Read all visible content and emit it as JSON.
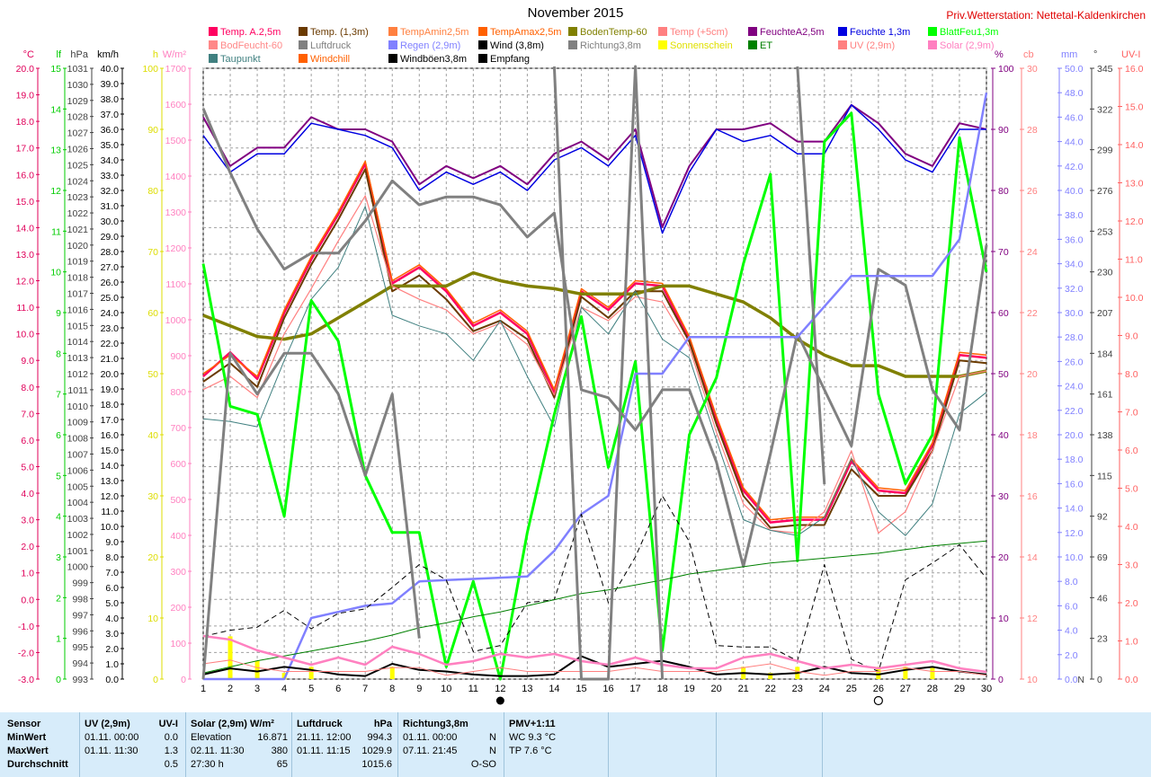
{
  "title": "November 2015",
  "station": "Priv.Wetterstation: Nettetal-Kaldenkirchen",
  "legend": [
    {
      "label": "Temp. A.2,5m",
      "color": "#ff0060"
    },
    {
      "label": "Temp. (1,3m)",
      "color": "#6a3a00"
    },
    {
      "label": "TempAmin2,5m",
      "color": "#ff8040"
    },
    {
      "label": "TempAmax2,5m",
      "color": "#ff6000"
    },
    {
      "label": "BodenTemp-60",
      "color": "#808000"
    },
    {
      "label": "Temp (+5cm)",
      "color": "#ff8080"
    },
    {
      "label": "FeuchteA2,5m",
      "color": "#800080"
    },
    {
      "label": "Feuchte 1,3m",
      "color": "#0000e0"
    },
    {
      "label": "BlattFeu1,3m",
      "color": "#00ff00"
    },
    {
      "label": "BodFeucht-60",
      "color": "#ff8888"
    },
    {
      "label": "Luftdruck",
      "color": "#808080"
    },
    {
      "label": "Regen (2,9m)",
      "color": "#8080ff"
    },
    {
      "label": "Wind (3,8m)",
      "color": "#000000"
    },
    {
      "label": "Richtung3,8m",
      "color": "#808080"
    },
    {
      "label": "Sonnenschein",
      "color": "#ffff00"
    },
    {
      "label": "ET",
      "color": "#008000"
    },
    {
      "label": "UV (2,9m)",
      "color": "#ff8080"
    },
    {
      "label": "Solar (2,9m)",
      "color": "#ff80c0"
    },
    {
      "label": "Taupunkt",
      "color": "#408080"
    },
    {
      "label": "Windchill",
      "color": "#ff6000"
    },
    {
      "label": "Windböen3,8m",
      "color": "#000000"
    },
    {
      "label": "Empfang",
      "color": "#000000"
    }
  ],
  "axes_left": [
    {
      "unit": "°C",
      "color": "#e0005a",
      "ticks": [
        "20.0",
        "19.0",
        "18.0",
        "17.0",
        "16.0",
        "15.0",
        "14.0",
        "13.0",
        "12.0",
        "11.0",
        "10.0",
        "9.0",
        "8.0",
        "7.0",
        "6.0",
        "5.0",
        "4.0",
        "3.0",
        "2.0",
        "1.0",
        "0.0",
        "-1.0",
        "-2.0",
        "-3.0"
      ]
    },
    {
      "unit": "lf",
      "color": "#00cc00",
      "ticks": [
        "15",
        "14",
        "13",
        "12",
        "11",
        "10",
        "9",
        "8",
        "7",
        "6",
        "5",
        "4",
        "3",
        "2",
        "1",
        "0"
      ]
    },
    {
      "unit": "hPa",
      "color": "#404040",
      "ticks": [
        "1031",
        "1030",
        "1029",
        "1028",
        "1027",
        "1026",
        "1025",
        "1024",
        "1023",
        "1022",
        "1021",
        "1020",
        "1019",
        "1018",
        "1017",
        "1016",
        "1015",
        "1014",
        "1013",
        "1012",
        "1011",
        "1010",
        "1009",
        "1008",
        "1007",
        "1006",
        "1005",
        "1004",
        "1003",
        "1002",
        "1001",
        "1000",
        "999",
        "998",
        "997",
        "996",
        "995",
        "994",
        "993"
      ]
    },
    {
      "unit": "km/h",
      "color": "#000000",
      "ticks": [
        "40.0",
        "39.0",
        "38.0",
        "37.0",
        "36.0",
        "35.0",
        "34.0",
        "33.0",
        "32.0",
        "31.0",
        "30.0",
        "29.0",
        "28.0",
        "27.0",
        "26.0",
        "25.0",
        "24.0",
        "23.0",
        "22.0",
        "21.0",
        "20.0",
        "19.0",
        "18.0",
        "17.0",
        "16.0",
        "15.0",
        "14.0",
        "13.0",
        "12.0",
        "11.0",
        "10.0",
        "9.0",
        "8.0",
        "7.0",
        "6.0",
        "5.0",
        "4.0",
        "3.0",
        "2.0",
        "1.0",
        "0.0"
      ]
    },
    {
      "unit": "h",
      "color": "#dddd00",
      "ticks": [
        "100",
        "90",
        "80",
        "70",
        "60",
        "50",
        "40",
        "30",
        "20",
        "10",
        "0"
      ]
    },
    {
      "unit": "W/m²",
      "color": "#ff80c0",
      "ticks": [
        "1700",
        "1600",
        "1500",
        "1400",
        "1300",
        "1200",
        "1100",
        "1000",
        "900",
        "800",
        "700",
        "600",
        "500",
        "400",
        "300",
        "200",
        "100",
        "0"
      ]
    }
  ],
  "axes_right": [
    {
      "unit": "%",
      "color": "#800080",
      "ticks": [
        "100",
        "90",
        "80",
        "70",
        "60",
        "50",
        "40",
        "30",
        "20",
        "10",
        "0"
      ]
    },
    {
      "unit": "cb",
      "color": "#ff8080",
      "ticks": [
        "30",
        "28",
        "26",
        "24",
        "22",
        "20",
        "18",
        "16",
        "14",
        "12",
        "10"
      ]
    },
    {
      "unit": "mm",
      "color": "#8080ff",
      "ticks": [
        "50.0",
        "48.0",
        "46.0",
        "44.0",
        "42.0",
        "40.0",
        "38.0",
        "36.0",
        "34.0",
        "32.0",
        "30.0",
        "28.0",
        "26.0",
        "24.0",
        "22.0",
        "20.0",
        "18.0",
        "16.0",
        "14.0",
        "12.0",
        "10.0",
        "8.0",
        "6.0",
        "4.0",
        "2.0",
        "0.0"
      ]
    },
    {
      "unit": "°",
      "color": "#404040",
      "ticks": [
        "345",
        "322",
        "299",
        "276",
        "253",
        "230",
        "207",
        "184",
        "161",
        "138",
        "115",
        "92",
        "69",
        "46",
        "23",
        "0"
      ],
      "bottom_label": "N"
    },
    {
      "unit": "UV-I",
      "color": "#ff6060",
      "ticks": [
        "16.0",
        "15.0",
        "14.0",
        "13.0",
        "12.0",
        "11.0",
        "10.0",
        "9.0",
        "8.0",
        "7.0",
        "6.0",
        "5.0",
        "4.0",
        "3.0",
        "2.0",
        "1.0",
        "0.0"
      ]
    }
  ],
  "moon_phase_symbols": [
    {
      "day": 12,
      "phase": "new moon"
    },
    {
      "day": 26,
      "phase": "full moon"
    }
  ],
  "chart_data": {
    "type": "line",
    "x": [
      1,
      2,
      3,
      4,
      5,
      6,
      7,
      8,
      9,
      10,
      11,
      12,
      13,
      14,
      15,
      16,
      17,
      18,
      19,
      20,
      21,
      22,
      23,
      24,
      25,
      26,
      27,
      28,
      29,
      30
    ],
    "xlim": [
      1,
      30
    ],
    "series": [
      {
        "name": "Temp. A.2,5m",
        "axis": "°C",
        "color": "#ff0060",
        "width": 2.5,
        "values": [
          8.4,
          9.3,
          8.3,
          10.8,
          12.8,
          14.5,
          16.4,
          11.9,
          12.5,
          11.6,
          10.3,
          10.8,
          10.0,
          7.8,
          11.6,
          10.9,
          11.9,
          11.8,
          9.8,
          6.8,
          4.1,
          2.9,
          3.0,
          3.0,
          5.2,
          4.1,
          4.0,
          5.8,
          9.2,
          9.1
        ]
      },
      {
        "name": "Temp. (1,3m)",
        "axis": "°C",
        "color": "#6a3a00",
        "width": 2,
        "values": [
          8.2,
          8.9,
          8.0,
          10.6,
          12.6,
          14.3,
          16.2,
          11.6,
          12.2,
          11.3,
          10.1,
          10.5,
          9.8,
          7.6,
          11.4,
          10.6,
          11.6,
          11.6,
          9.7,
          6.6,
          3.9,
          2.7,
          2.8,
          2.8,
          4.9,
          3.9,
          3.9,
          5.6,
          9.0,
          8.9
        ]
      },
      {
        "name": "TempAmax2,5m",
        "axis": "°C",
        "color": "#ff6000",
        "width": 1.5,
        "values": [
          8.5,
          9.2,
          8.4,
          10.9,
          12.9,
          14.6,
          16.5,
          12.0,
          12.6,
          11.7,
          10.4,
          10.9,
          10.1,
          7.9,
          11.7,
          11.0,
          12.0,
          11.9,
          9.9,
          6.9,
          4.2,
          3.0,
          3.1,
          3.1,
          5.3,
          4.2,
          4.1,
          5.9,
          9.3,
          9.2
        ]
      },
      {
        "name": "BodenTemp-60",
        "axis": "°C",
        "color": "#808000",
        "width": 3.5,
        "values": [
          10.7,
          10.3,
          9.9,
          9.8,
          10.0,
          10.6,
          11.2,
          11.8,
          11.8,
          11.8,
          12.3,
          12.0,
          11.8,
          11.7,
          11.5,
          11.5,
          11.5,
          11.8,
          11.8,
          11.5,
          11.2,
          10.6,
          9.8,
          9.2,
          8.8,
          8.8,
          8.4,
          8.4,
          8.4,
          8.6
        ]
      },
      {
        "name": "Temp (+5cm)",
        "axis": "°C",
        "color": "#ff8080",
        "width": 1.2,
        "values": [
          7.9,
          8.4,
          7.6,
          10.0,
          11.7,
          13.5,
          15.2,
          11.8,
          11.3,
          10.9,
          10.0,
          10.4,
          9.6,
          7.7,
          11.0,
          10.5,
          11.4,
          11.2,
          9.5,
          6.3,
          3.6,
          2.6,
          2.5,
          3.3,
          5.6,
          2.5,
          3.3,
          5.6,
          8.4,
          8.6
        ]
      },
      {
        "name": "Taupunkt",
        "axis": "°C",
        "color": "#408080",
        "width": 1,
        "values": [
          6.8,
          6.7,
          6.5,
          9.0,
          11.3,
          12.5,
          14.8,
          10.7,
          10.3,
          10.0,
          9.0,
          10.5,
          8.4,
          6.5,
          11.0,
          10.0,
          11.6,
          9.8,
          9.1,
          6.0,
          3.0,
          2.6,
          2.4,
          3.1,
          5.3,
          3.3,
          2.4,
          3.6,
          7.0,
          7.8
        ]
      },
      {
        "name": "FeuchteA2,5m",
        "axis": "%",
        "color": "#800080",
        "width": 2,
        "values": [
          92,
          84,
          87,
          87,
          92,
          90,
          90,
          88,
          81,
          84,
          82,
          84,
          81,
          86,
          88,
          85,
          90,
          74,
          84,
          90,
          90,
          91,
          88,
          88,
          94,
          91,
          86,
          84,
          91,
          90
        ]
      },
      {
        "name": "Feuchte 1,3m",
        "axis": "%",
        "color": "#0000e0",
        "width": 1.5,
        "values": [
          89,
          83,
          86,
          86,
          91,
          90,
          89,
          87,
          80,
          83,
          81,
          83,
          80,
          85,
          87,
          84,
          89,
          73,
          83,
          90,
          88,
          89,
          86,
          86,
          94,
          90,
          85,
          83,
          90,
          90
        ]
      },
      {
        "name": "BlattFeu1,3m",
        "axis": "lf",
        "color": "#00ff00",
        "width": 3,
        "values": [
          10.2,
          6.7,
          6.5,
          4.0,
          9.3,
          8.3,
          5.0,
          3.6,
          3.6,
          0.3,
          2.4,
          0.0,
          3.6,
          6.5,
          8.9,
          5.2,
          7.8,
          0.7,
          6.0,
          7.4,
          10.2,
          12.4,
          2.9,
          13.2,
          13.9,
          7.0,
          4.8,
          6.0,
          13.3,
          10.0
        ]
      },
      {
        "name": "Luftdruck",
        "axis": "hPa",
        "color": "#808080",
        "width": 3,
        "values": [
          1028.5,
          1024.5,
          1021.0,
          1018.5,
          1019.5,
          1019.5,
          1021.5,
          1024.0,
          1022.5,
          1023.0,
          1023.0,
          1022.5,
          1020.5,
          1022.0,
          1011.0,
          1010.5,
          1008.5,
          1011.0,
          1011.0,
          1006.5,
          1000.0,
          1007.0,
          1014.5,
          1011.0,
          1007.5,
          1018.5,
          1017.5,
          1011.0,
          1008.5,
          1020.0
        ]
      },
      {
        "name": "Regen (2,9m)",
        "axis": "mm",
        "color": "#8080ff",
        "width": 2.5,
        "values": [
          0.0,
          0.0,
          0.0,
          0.0,
          5.0,
          5.5,
          6.0,
          6.2,
          8.0,
          8.1,
          8.2,
          8.3,
          8.4,
          10.5,
          13.5,
          15.0,
          25.0,
          25.0,
          28.0,
          28.0,
          28.0,
          28.0,
          28.0,
          30.5,
          33.0,
          33.0,
          33.0,
          33.0,
          36.0,
          48.0
        ]
      },
      {
        "name": "Wind (3,8m)",
        "axis": "km/h",
        "color": "#000000",
        "width": 2,
        "values": [
          0.3,
          0.7,
          0.5,
          0.8,
          0.6,
          0.3,
          0.2,
          1.0,
          0.6,
          0.5,
          0.3,
          0.2,
          0.2,
          0.3,
          1.5,
          0.8,
          1.0,
          1.2,
          0.8,
          0.3,
          0.4,
          0.3,
          0.4,
          0.8,
          0.4,
          0.3,
          0.6,
          0.8,
          0.5,
          0.3
        ]
      },
      {
        "name": "Windböen3,8m",
        "axis": "km/h",
        "color": "#000000",
        "width": 1,
        "dash": true,
        "values": [
          2.8,
          3.2,
          3.4,
          4.5,
          3.3,
          4.3,
          4.6,
          6.0,
          7.5,
          6.5,
          1.8,
          2.2,
          5.0,
          5.2,
          10.8,
          5.0,
          8.0,
          12.0,
          9.0,
          2.2,
          2.1,
          2.1,
          1.2,
          7.5,
          1.3,
          0.5,
          6.5,
          7.6,
          8.8,
          6.6
        ]
      },
      {
        "name": "ET",
        "axis": "mm",
        "color": "#008000",
        "width": 1,
        "values": [
          0.5,
          1.0,
          1.5,
          1.9,
          2.3,
          2.7,
          3.1,
          3.6,
          4.2,
          4.6,
          5.1,
          5.5,
          6.0,
          6.5,
          7.0,
          7.3,
          7.7,
          8.1,
          8.6,
          8.9,
          9.2,
          9.5,
          9.7,
          9.9,
          10.1,
          10.3,
          10.6,
          10.9,
          11.1,
          11.3
        ]
      },
      {
        "name": "Solar (2,9m)",
        "axis": "W/m²",
        "color": "#ff80c0",
        "width": 2.5,
        "values": [
          120,
          110,
          80,
          60,
          40,
          60,
          40,
          90,
          70,
          40,
          50,
          70,
          60,
          70,
          50,
          40,
          60,
          40,
          30,
          30,
          60,
          70,
          50,
          30,
          40,
          30,
          40,
          50,
          30,
          20
        ]
      },
      {
        "name": "UV (2,9m)",
        "axis": "UV-I",
        "color": "#ff8080",
        "width": 1,
        "values": [
          0.4,
          0.5,
          0.3,
          0.2,
          0.2,
          0.2,
          0.2,
          0.3,
          0.3,
          0.1,
          0.2,
          0.3,
          0.2,
          0.2,
          0.2,
          0.2,
          0.3,
          0.2,
          0.2,
          0.2,
          0.3,
          0.4,
          0.2,
          0.1,
          0.2,
          0.2,
          0.3,
          0.2,
          0.2,
          0.1
        ]
      },
      {
        "name": "Richtung3,8m",
        "axis": "°",
        "color": "#808080",
        "width": 3,
        "values": [
          0,
          184,
          161,
          184,
          184,
          161,
          115,
          161,
          23,
          null,
          null,
          null,
          null,
          360,
          0,
          0,
          360,
          0,
          null,
          null,
          null,
          null,
          360,
          110,
          null,
          null,
          null,
          null,
          null,
          null
        ]
      }
    ],
    "sunshine_bars_h": [
      0,
      7,
      3,
      1,
      2,
      0,
      0,
      2,
      0,
      0,
      0,
      0,
      0,
      0,
      0,
      0,
      0,
      0,
      0,
      0,
      2,
      1,
      2,
      0,
      0,
      2,
      2,
      2,
      0,
      0
    ],
    "grid": true
  },
  "stats": {
    "sensor": {
      "header": "Sensor",
      "rows": [
        "MinWert",
        "MaxWert",
        "Durchschnitt"
      ]
    },
    "uv": {
      "header": "UV (2,9m)",
      "header_unit": "UV-I",
      "rows": [
        {
          "time": "01.11.  00:00",
          "value": "0.0"
        },
        {
          "time": "01.11.  11:30",
          "value": "1.3"
        },
        {
          "time": "",
          "value": "0.5"
        }
      ]
    },
    "solar": {
      "header": "Solar (2,9m) W/m²",
      "rows": [
        {
          "time": "Elevation",
          "value": "16.871"
        },
        {
          "time": "02.11.  11:30",
          "value": "380"
        },
        {
          "time": "27:30 h",
          "value": "65"
        }
      ]
    },
    "pressure": {
      "header": "Luftdruck",
      "header_unit": "hPa",
      "rows": [
        {
          "time": "21.11.  12:00",
          "value": "994.3"
        },
        {
          "time": "01.11.  11:15",
          "value": "1029.9"
        },
        {
          "time": "",
          "value": "1015.6"
        }
      ]
    },
    "direction": {
      "header": "Richtung3,8m",
      "rows": [
        {
          "time": "01.11.  00:00",
          "value": "N"
        },
        {
          "time": "07.11.  21:45",
          "value": "N"
        },
        {
          "time": "",
          "value": "O-SO"
        }
      ]
    },
    "pmv": {
      "header": "PMV+1:11",
      "rows": [
        "WC 9.3 °C",
        "TP 7.6 °C",
        ""
      ]
    }
  }
}
